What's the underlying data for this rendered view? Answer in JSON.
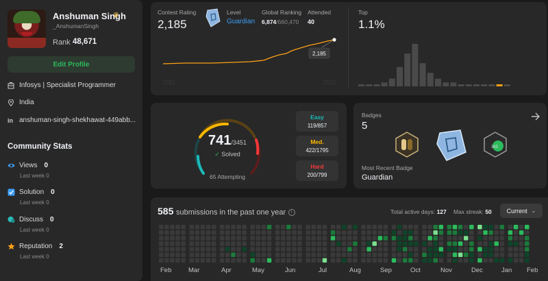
{
  "profile": {
    "name": "Anshuman Singh",
    "handle": "_AnshumanSingh",
    "rank_label": "Rank",
    "rank_value": "48,671",
    "edit_label": "Edit Profile",
    "company": "Infosys | Specialist Programmer",
    "location": "India",
    "linkedin": "anshuman-singh-shekhawat-449abb..."
  },
  "community": {
    "title": "Community Stats",
    "items": [
      {
        "label": "Views",
        "value": "0",
        "sub": "Last week 0",
        "color": "#3d9ef5",
        "icon": "eye-icon"
      },
      {
        "label": "Solution",
        "value": "0",
        "sub": "Last week 0",
        "color": "#3d9ef5",
        "icon": "checkbox-icon"
      },
      {
        "label": "Discuss",
        "value": "0",
        "sub": "Last week 0",
        "color": "#2cbbbb",
        "icon": "chat-icon"
      },
      {
        "label": "Reputation",
        "value": "2",
        "sub": "Last week 0",
        "color": "#ffa116",
        "icon": "star-icon"
      }
    ]
  },
  "contest": {
    "rating_label": "Contest Rating",
    "rating_value": "2,185",
    "level_label": "Level",
    "level_value": "Guardian",
    "global_label": "Global Ranking",
    "global_value": "6,874",
    "global_total": "/660,470",
    "attended_label": "Attended",
    "attended_value": "40",
    "top_label": "Top",
    "top_value": "1.1%",
    "tooltip": "2,185",
    "year_start": "2021",
    "year_end": "2023",
    "line_color": "#ffa116",
    "histogram": [
      1,
      1,
      1,
      2,
      4,
      10,
      17,
      22,
      12,
      7,
      4,
      2,
      2,
      1,
      1,
      1,
      1,
      1,
      1,
      1
    ],
    "highlight_bar": 18
  },
  "problems": {
    "solved": "741",
    "total": "/3451",
    "solved_label": "Solved",
    "attempting": "65 Attempting",
    "easy": {
      "label": "Easy",
      "value": "119/857",
      "color": "#1cbaba",
      "solved": 119,
      "total": 857
    },
    "medium": {
      "label": "Med.",
      "value": "422/1795",
      "color": "#ffb700",
      "solved": 422,
      "total": 1795
    },
    "hard": {
      "label": "Hard",
      "value": "200/799",
      "color": "#f63737",
      "solved": 200,
      "total": 799
    }
  },
  "badges": {
    "label": "Badges",
    "count": "5",
    "recent_label": "Most Recent Badge",
    "recent_value": "Guardian",
    "mini_label": "365"
  },
  "submissions": {
    "count": "585",
    "text": "submissions in the past one year",
    "active_label": "Total active days:",
    "active_value": "127",
    "streak_label": "Max streak:",
    "streak_value": "50",
    "current_label": "Current",
    "months": [
      "Feb",
      "Mar",
      "Apr",
      "May",
      "Jun",
      "Jul",
      "Aug",
      "Sep",
      "Oct",
      "Nov",
      "Dec",
      "Jan",
      "Feb"
    ]
  }
}
